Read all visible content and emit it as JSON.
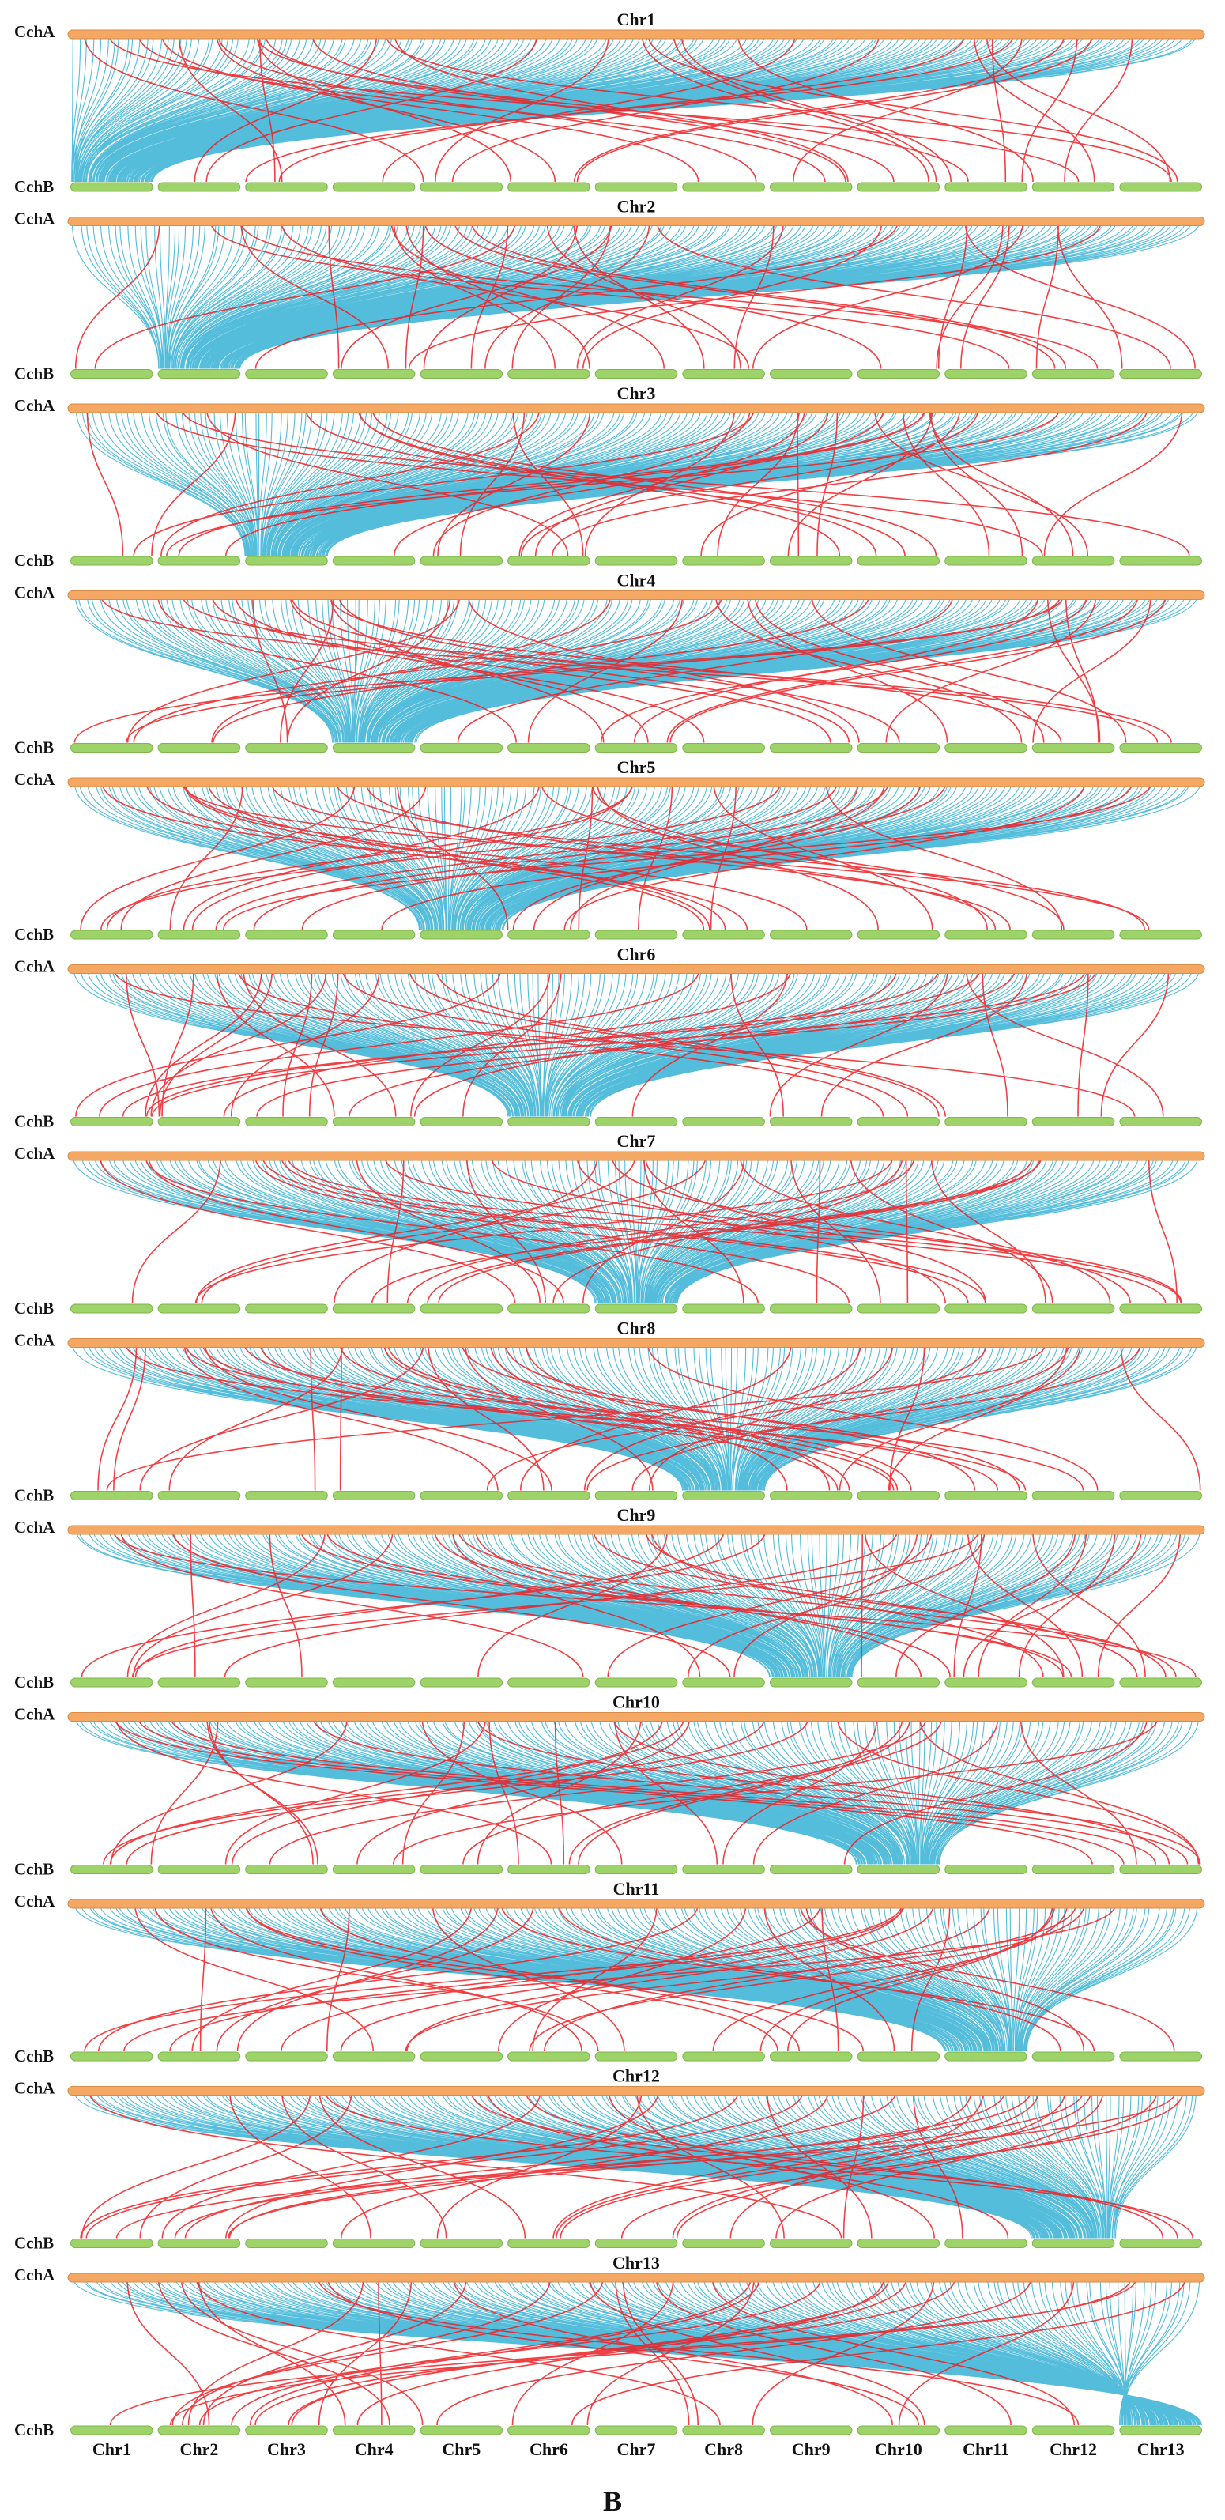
{
  "figure": {
    "panel_label": "B",
    "top_track_label": "CchA",
    "bottom_track_label": "CchB",
    "rows": [
      {
        "title": "Chr1",
        "focus_bottom_index": 0
      },
      {
        "title": "Chr2",
        "focus_bottom_index": 1
      },
      {
        "title": "Chr3",
        "focus_bottom_index": 2
      },
      {
        "title": "Chr4",
        "focus_bottom_index": 3
      },
      {
        "title": "Chr5",
        "focus_bottom_index": 4
      },
      {
        "title": "Chr6",
        "focus_bottom_index": 5
      },
      {
        "title": "Chr7",
        "focus_bottom_index": 6
      },
      {
        "title": "Chr8",
        "focus_bottom_index": 7
      },
      {
        "title": "Chr9",
        "focus_bottom_index": 8
      },
      {
        "title": "Chr10",
        "focus_bottom_index": 9
      },
      {
        "title": "Chr11",
        "focus_bottom_index": 10
      },
      {
        "title": "Chr12",
        "focus_bottom_index": 11
      },
      {
        "title": "Chr13",
        "focus_bottom_index": 12
      }
    ],
    "bottom_chromosomes": [
      "Chr1",
      "Chr2",
      "Chr3",
      "Chr4",
      "Chr5",
      "Chr6",
      "Chr7",
      "Chr8",
      "Chr9",
      "Chr10",
      "Chr11",
      "Chr12",
      "Chr13"
    ],
    "colors": {
      "top_track": "#f5a863",
      "bottom_track": "#9ed36a",
      "collinear_links": "#19a7cf",
      "other_links": "#ef1f23",
      "text": "#111111"
    }
  }
}
